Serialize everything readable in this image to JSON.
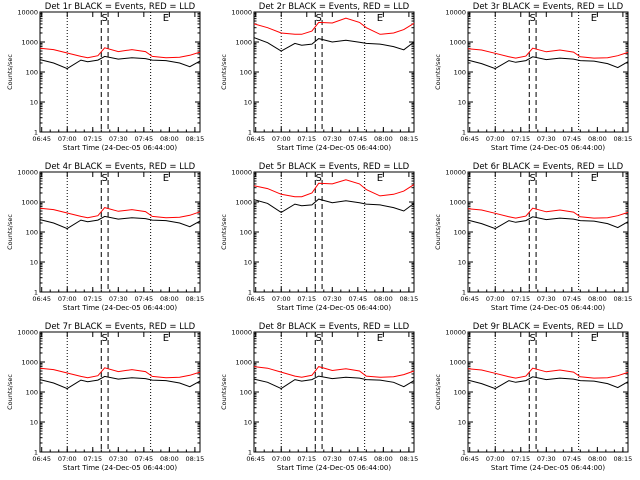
{
  "colors": {
    "events": "#000000",
    "lld": "#ff0000",
    "background": "#ffffff"
  },
  "shared": {
    "xlabel": "Start Time (24-Dec-05 06:44:00)",
    "ylabel": "Counts/sec",
    "xticks": [
      "06:45",
      "07:00",
      "07:15",
      "07:30",
      "07:45",
      "08:00",
      "08:15"
    ],
    "yticks": [
      "1",
      "10",
      "100",
      "1000",
      "10000"
    ],
    "markers": {
      "s": "S",
      "e": "E"
    }
  },
  "chart_data": [
    {
      "type": "line",
      "title": "Det 1r BLACK = Events, RED = LLD",
      "xlabel": "Start Time (24-Dec-05 06:44:00)",
      "ylabel": "Counts/sec",
      "xlim_minutes": [
        0,
        94
      ],
      "ylim": [
        1,
        10000
      ],
      "yscale": "log",
      "vlines_dotted_minutes": [
        16,
        65
      ],
      "vlines_dashed_minutes": [
        36,
        40
      ],
      "markers": [
        {
          "label": "S",
          "minute": 38
        },
        {
          "label": "E",
          "minute": 74
        }
      ],
      "series": [
        {
          "color": "red",
          "x": [
            0,
            8,
            16,
            24,
            28,
            34,
            38,
            46,
            54,
            62,
            66,
            74,
            82,
            88,
            94
          ],
          "y": [
            620,
            560,
            430,
            330,
            300,
            350,
            640,
            480,
            560,
            480,
            330,
            300,
            310,
            360,
            460
          ]
        },
        {
          "color": "black",
          "x": [
            0,
            8,
            16,
            24,
            28,
            34,
            38,
            46,
            54,
            62,
            66,
            74,
            82,
            88,
            94
          ],
          "y": [
            260,
            200,
            130,
            250,
            220,
            250,
            330,
            270,
            300,
            280,
            250,
            240,
            200,
            150,
            230
          ]
        }
      ]
    },
    {
      "type": "line",
      "title": "Det 2r BLACK = Events, RED = LLD",
      "xlabel": "Start Time (24-Dec-05 06:44:00)",
      "ylabel": "Counts/sec",
      "xlim_minutes": [
        0,
        94
      ],
      "ylim": [
        1,
        10000
      ],
      "yscale": "log",
      "vlines_dotted_minutes": [
        16,
        65
      ],
      "vlines_dashed_minutes": [
        36,
        40
      ],
      "markers": [
        {
          "label": "S",
          "minute": 38
        },
        {
          "label": "E",
          "minute": 74
        }
      ],
      "series": [
        {
          "color": "red",
          "x": [
            0,
            8,
            16,
            24,
            28,
            34,
            38,
            46,
            54,
            62,
            66,
            74,
            82,
            88,
            94
          ],
          "y": [
            4000,
            3000,
            2000,
            1800,
            1800,
            2300,
            4500,
            4300,
            6200,
            4500,
            3000,
            1800,
            2000,
            2600,
            4200
          ]
        },
        {
          "color": "black",
          "x": [
            0,
            8,
            16,
            24,
            28,
            34,
            38,
            46,
            54,
            62,
            66,
            74,
            82,
            88,
            94
          ],
          "y": [
            1400,
            950,
            500,
            900,
            780,
            850,
            1300,
            1000,
            1150,
            980,
            900,
            850,
            700,
            550,
            1000
          ]
        }
      ]
    },
    {
      "type": "line",
      "title": "Det 3r BLACK = Events, RED = LLD",
      "xlabel": "Start Time (24-Dec-05 06:44:00)",
      "ylabel": "Counts/sec",
      "xlim_minutes": [
        0,
        94
      ],
      "ylim": [
        1,
        10000
      ],
      "yscale": "log",
      "vlines_dotted_minutes": [
        16,
        65
      ],
      "vlines_dashed_minutes": [
        36,
        40
      ],
      "markers": [
        {
          "label": "S",
          "minute": 38
        },
        {
          "label": "E",
          "minute": 74
        }
      ],
      "series": [
        {
          "color": "red",
          "x": [
            0,
            8,
            16,
            24,
            28,
            34,
            38,
            46,
            54,
            62,
            66,
            74,
            82,
            88,
            94
          ],
          "y": [
            600,
            540,
            420,
            320,
            290,
            340,
            620,
            470,
            540,
            460,
            320,
            290,
            300,
            350,
            450
          ]
        },
        {
          "color": "black",
          "x": [
            0,
            8,
            16,
            24,
            28,
            34,
            38,
            46,
            54,
            62,
            66,
            74,
            82,
            88,
            94
          ],
          "y": [
            250,
            190,
            130,
            240,
            210,
            240,
            320,
            260,
            290,
            270,
            240,
            230,
            190,
            140,
            220
          ]
        }
      ]
    },
    {
      "type": "line",
      "title": "Det 4r BLACK = Events, RED = LLD",
      "xlabel": "Start Time (24-Dec-05 06:44:00)",
      "ylabel": "Counts/sec",
      "xlim_minutes": [
        0,
        94
      ],
      "ylim": [
        1,
        10000
      ],
      "yscale": "log",
      "vlines_dotted_minutes": [
        16,
        65
      ],
      "vlines_dashed_minutes": [
        36,
        40
      ],
      "markers": [
        {
          "label": "S",
          "minute": 38
        },
        {
          "label": "E",
          "minute": 74
        }
      ],
      "series": [
        {
          "color": "red",
          "x": [
            0,
            8,
            16,
            24,
            28,
            34,
            38,
            46,
            54,
            62,
            66,
            74,
            82,
            88,
            94
          ],
          "y": [
            620,
            560,
            430,
            330,
            300,
            350,
            650,
            490,
            560,
            480,
            330,
            300,
            310,
            360,
            470
          ]
        },
        {
          "color": "black",
          "x": [
            0,
            8,
            16,
            24,
            28,
            34,
            38,
            46,
            54,
            62,
            66,
            74,
            82,
            88,
            94
          ],
          "y": [
            260,
            200,
            130,
            250,
            220,
            250,
            330,
            270,
            300,
            280,
            250,
            240,
            200,
            150,
            230
          ]
        }
      ]
    },
    {
      "type": "line",
      "title": "Det 5r BLACK = Events, RED = LLD",
      "xlabel": "Start Time (24-Dec-05 06:44:00)",
      "ylabel": "Counts/sec",
      "xlim_minutes": [
        0,
        94
      ],
      "ylim": [
        1,
        10000
      ],
      "yscale": "log",
      "vlines_dotted_minutes": [
        16,
        65
      ],
      "vlines_dashed_minutes": [
        36,
        40
      ],
      "markers": [
        {
          "label": "S",
          "minute": 38
        },
        {
          "label": "E",
          "minute": 74
        }
      ],
      "series": [
        {
          "color": "red",
          "x": [
            0,
            8,
            16,
            24,
            28,
            34,
            38,
            46,
            54,
            62,
            66,
            74,
            82,
            88,
            94
          ],
          "y": [
            3500,
            2800,
            1800,
            1500,
            1500,
            2000,
            4200,
            4000,
            5500,
            4000,
            2600,
            1600,
            1800,
            2300,
            3800
          ]
        },
        {
          "color": "black",
          "x": [
            0,
            8,
            16,
            24,
            28,
            34,
            38,
            46,
            54,
            62,
            66,
            74,
            82,
            88,
            94
          ],
          "y": [
            1200,
            900,
            450,
            850,
            750,
            800,
            1250,
            950,
            1100,
            950,
            850,
            800,
            650,
            500,
            900
          ]
        }
      ]
    },
    {
      "type": "line",
      "title": "Det 6r BLACK = Events, RED = LLD",
      "xlabel": "Start Time (24-Dec-05 06:44:00)",
      "ylabel": "Counts/sec",
      "xlim_minutes": [
        0,
        94
      ],
      "ylim": [
        1,
        10000
      ],
      "yscale": "log",
      "vlines_dotted_minutes": [
        16,
        65
      ],
      "vlines_dashed_minutes": [
        36,
        40
      ],
      "markers": [
        {
          "label": "S",
          "minute": 38
        },
        {
          "label": "E",
          "minute": 74
        }
      ],
      "series": [
        {
          "color": "red",
          "x": [
            0,
            8,
            16,
            24,
            28,
            34,
            38,
            46,
            54,
            62,
            66,
            74,
            82,
            88,
            94
          ],
          "y": [
            600,
            540,
            420,
            320,
            290,
            340,
            620,
            470,
            540,
            460,
            320,
            290,
            300,
            350,
            450
          ]
        },
        {
          "color": "black",
          "x": [
            0,
            8,
            16,
            24,
            28,
            34,
            38,
            46,
            54,
            62,
            66,
            74,
            82,
            88,
            94
          ],
          "y": [
            250,
            190,
            130,
            240,
            210,
            240,
            320,
            260,
            290,
            270,
            240,
            230,
            190,
            140,
            220
          ]
        }
      ]
    },
    {
      "type": "line",
      "title": "Det 7r BLACK = Events, RED = LLD",
      "xlabel": "Start Time (24-Dec-05 06:44:00)",
      "ylabel": "Counts/sec",
      "xlim_minutes": [
        0,
        94
      ],
      "ylim": [
        1,
        10000
      ],
      "yscale": "log",
      "vlines_dotted_minutes": [
        16,
        65
      ],
      "vlines_dashed_minutes": [
        36,
        40
      ],
      "markers": [
        {
          "label": "S",
          "minute": 38
        },
        {
          "label": "E",
          "minute": 74
        }
      ],
      "series": [
        {
          "color": "red",
          "x": [
            0,
            8,
            16,
            24,
            28,
            34,
            38,
            46,
            54,
            62,
            66,
            74,
            82,
            88,
            94
          ],
          "y": [
            620,
            560,
            430,
            330,
            300,
            350,
            640,
            480,
            560,
            480,
            330,
            300,
            310,
            360,
            460
          ]
        },
        {
          "color": "black",
          "x": [
            0,
            8,
            16,
            24,
            28,
            34,
            38,
            46,
            54,
            62,
            66,
            74,
            82,
            88,
            94
          ],
          "y": [
            260,
            200,
            130,
            250,
            220,
            250,
            330,
            270,
            300,
            280,
            250,
            240,
            200,
            150,
            230
          ]
        }
      ]
    },
    {
      "type": "line",
      "title": "Det 8r BLACK = Events, RED = LLD",
      "xlabel": "Start Time (24-Dec-05 06:44:00)",
      "ylabel": "Counts/sec",
      "xlim_minutes": [
        0,
        94
      ],
      "ylim": [
        1,
        10000
      ],
      "yscale": "log",
      "vlines_dotted_minutes": [
        16,
        65
      ],
      "vlines_dashed_minutes": [
        36,
        40
      ],
      "markers": [
        {
          "label": "S",
          "minute": 38
        },
        {
          "label": "E",
          "minute": 74
        }
      ],
      "series": [
        {
          "color": "red",
          "x": [
            0,
            8,
            16,
            24,
            28,
            34,
            38,
            46,
            54,
            62,
            66,
            74,
            82,
            88,
            94
          ],
          "y": [
            700,
            620,
            460,
            340,
            310,
            360,
            700,
            520,
            600,
            500,
            340,
            310,
            320,
            380,
            500
          ]
        },
        {
          "color": "black",
          "x": [
            0,
            8,
            16,
            24,
            28,
            34,
            38,
            46,
            54,
            62,
            66,
            74,
            82,
            88,
            94
          ],
          "y": [
            270,
            210,
            130,
            260,
            230,
            260,
            340,
            280,
            310,
            290,
            260,
            250,
            210,
            150,
            240
          ]
        }
      ]
    },
    {
      "type": "line",
      "title": "Det 9r BLACK = Events, RED = LLD",
      "xlabel": "Start Time (24-Dec-05 06:44:00)",
      "ylabel": "Counts/sec",
      "xlim_minutes": [
        0,
        94
      ],
      "ylim": [
        1,
        10000
      ],
      "yscale": "log",
      "vlines_dotted_minutes": [
        16,
        65
      ],
      "vlines_dashed_minutes": [
        36,
        40
      ],
      "markers": [
        {
          "label": "S",
          "minute": 38
        },
        {
          "label": "E",
          "minute": 74
        }
      ],
      "series": [
        {
          "color": "red",
          "x": [
            0,
            8,
            16,
            24,
            28,
            34,
            38,
            46,
            54,
            62,
            66,
            74,
            82,
            88,
            94
          ],
          "y": [
            600,
            540,
            420,
            320,
            290,
            340,
            620,
            470,
            540,
            460,
            320,
            290,
            300,
            350,
            450
          ]
        },
        {
          "color": "black",
          "x": [
            0,
            8,
            16,
            24,
            28,
            34,
            38,
            46,
            54,
            62,
            66,
            74,
            82,
            88,
            94
          ],
          "y": [
            250,
            190,
            130,
            240,
            210,
            240,
            320,
            260,
            290,
            270,
            240,
            230,
            190,
            140,
            220
          ]
        }
      ]
    }
  ]
}
